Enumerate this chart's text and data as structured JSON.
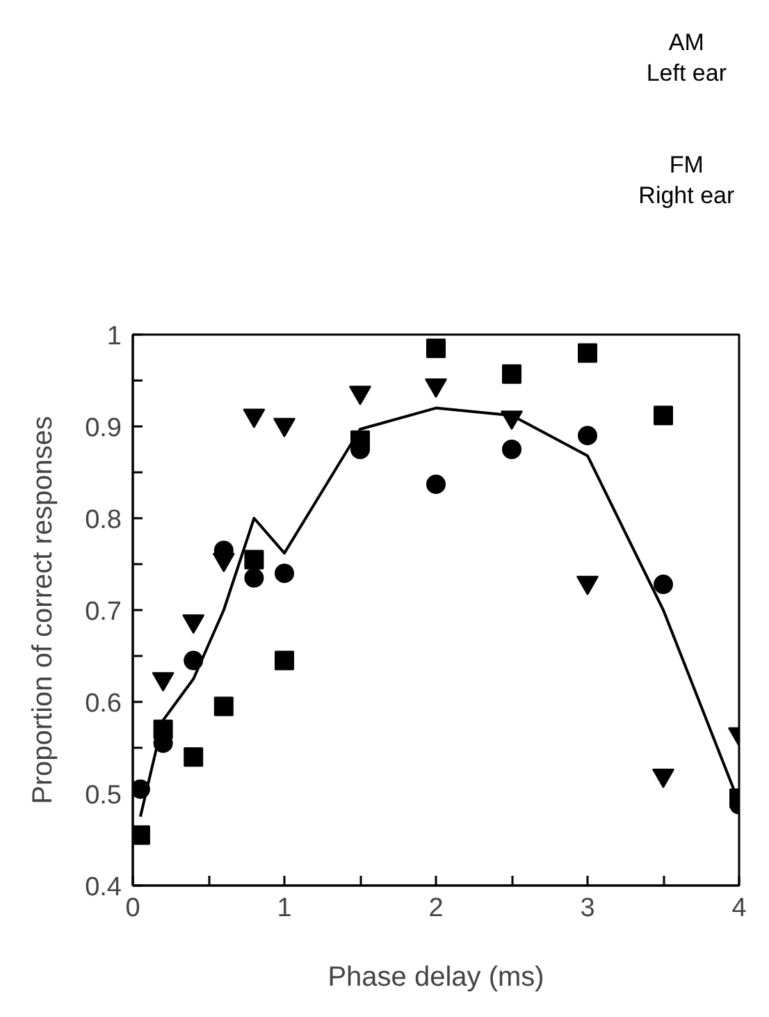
{
  "chart_data": {
    "type": "scatter",
    "xlabel": "Phase delay (ms)",
    "ylabel": "Proportion of correct responses",
    "annotations": [
      "AM",
      "Left ear",
      "FM",
      "Right ear"
    ],
    "xlim": [
      0,
      4
    ],
    "ylim": [
      0.4,
      1
    ],
    "xticks": [
      0,
      {
        "value": 0.5,
        "label": null
      },
      1,
      {
        "value": 1.5,
        "label": null
      },
      2,
      {
        "value": 2.5,
        "label": null
      },
      3,
      {
        "value": 3.5,
        "label": null
      },
      4
    ],
    "yticks": [
      0.4,
      {
        "value": 0.45,
        "label": null
      },
      0.5,
      {
        "value": 0.55,
        "label": null
      },
      0.6,
      {
        "value": 0.65,
        "label": null
      },
      0.7,
      {
        "value": 0.75,
        "label": null
      },
      0.8,
      {
        "value": 0.85,
        "label": null
      },
      0.9,
      {
        "value": 0.95,
        "label": null
      },
      1
    ],
    "series": [
      {
        "marker": "circle",
        "color": "#000000",
        "x": [
          0.05,
          0.2,
          0.4,
          0.6,
          0.8,
          1.0,
          1.5,
          2,
          2.5,
          3,
          3.5,
          4
        ],
        "values": [
          0.505,
          0.555,
          0.645,
          0.765,
          0.735,
          0.74,
          0.875,
          0.837,
          0.875,
          0.89,
          0.728,
          0.488
        ]
      },
      {
        "marker": "square",
        "color": "#000000",
        "x": [
          0.05,
          0.2,
          0.4,
          0.6,
          0.8,
          1.0,
          1.5,
          2,
          2.5,
          3,
          3.5,
          4
        ],
        "values": [
          0.455,
          0.57,
          0.54,
          0.595,
          0.755,
          0.645,
          0.885,
          0.985,
          0.957,
          0.98,
          0.912,
          0.495
        ]
      },
      {
        "marker": "triangle",
        "color": "#000000",
        "x": [
          0.2,
          0.4,
          0.6,
          0.8,
          1.0,
          1.5,
          2,
          2.5,
          3,
          3.5,
          4
        ],
        "values": [
          0.625,
          0.688,
          0.755,
          0.912,
          0.902,
          0.937,
          0.945,
          0.91,
          0.73,
          0.52,
          0.565
        ]
      },
      {
        "type": "line",
        "marker": "none",
        "line_style": "solid",
        "color": "#000000",
        "x": [
          0.05,
          0.2,
          0.4,
          0.6,
          0.8,
          1.0,
          1.5,
          2,
          2.5,
          3,
          3.5,
          4
        ],
        "values": [
          0.475,
          0.58,
          0.625,
          0.7,
          0.8,
          0.762,
          0.897,
          0.92,
          0.912,
          0.868,
          0.7,
          0.49
        ]
      }
    ]
  }
}
